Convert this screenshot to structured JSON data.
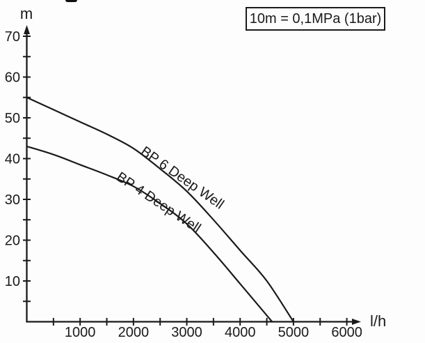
{
  "note": "10m = 0,1MPa (1bar)",
  "chart_data": {
    "type": "line",
    "title": "",
    "xlabel": "l/h",
    "ylabel": "m",
    "annotation": "10m = 0,1MPa (1bar)",
    "xlim": [
      0,
      6500
    ],
    "ylim": [
      0,
      75
    ],
    "grid": false,
    "legend_position": "on-curve",
    "x_major_ticks": [
      1000,
      2000,
      3000,
      4000,
      5000,
      6000
    ],
    "x_minor_step": 500,
    "x_minor_max": 6000,
    "y_major_ticks": [
      10,
      20,
      30,
      40,
      50,
      60,
      70
    ],
    "y_minor_step": 5,
    "y_minor_max": 70,
    "series": [
      {
        "name": "BP 6 Deep Well",
        "points": [
          [
            0,
            55
          ],
          [
            500,
            52
          ],
          [
            1000,
            49
          ],
          [
            1500,
            46
          ],
          [
            2000,
            42.5
          ],
          [
            2500,
            37.5
          ],
          [
            3000,
            32
          ],
          [
            3500,
            25
          ],
          [
            4000,
            17.5
          ],
          [
            4500,
            10
          ],
          [
            5000,
            0
          ]
        ]
      },
      {
        "name": "BP 4 Deep Well",
        "points": [
          [
            0,
            43
          ],
          [
            500,
            41
          ],
          [
            1000,
            38.5
          ],
          [
            1500,
            36
          ],
          [
            2000,
            33.2
          ],
          [
            2500,
            29
          ],
          [
            3000,
            24
          ],
          [
            3500,
            17
          ],
          [
            4000,
            9.3
          ],
          [
            4600,
            0
          ]
        ]
      }
    ]
  }
}
